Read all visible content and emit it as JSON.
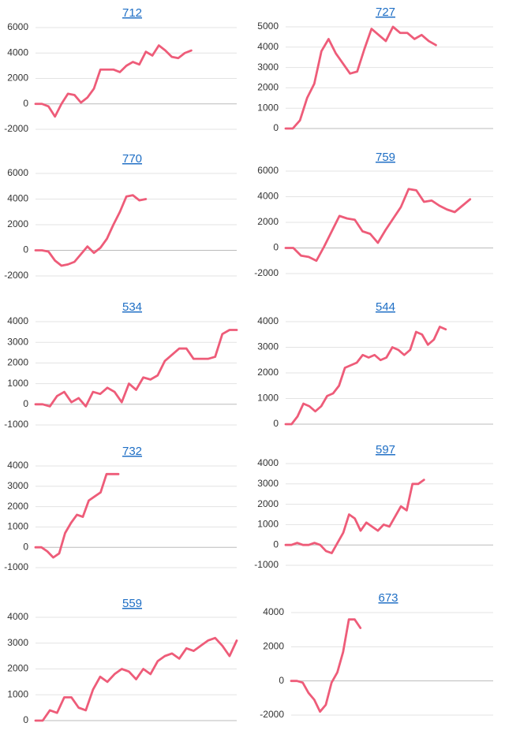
{
  "chart_data": [
    {
      "type": "line",
      "title": "712",
      "ylim": [
        -2000,
        6000
      ],
      "yticks": [
        -2000,
        0,
        2000,
        4000,
        6000
      ],
      "grid": true,
      "color": "#ee5c79",
      "values": [
        0,
        0,
        -200,
        -1000,
        0,
        800,
        700,
        100,
        500,
        1200,
        2700,
        2700,
        2700,
        2500,
        3000,
        3300,
        3100,
        4100,
        3800,
        4600,
        4200,
        3700,
        3600,
        4000,
        4200,
        null,
        null,
        null,
        null,
        null,
        null,
        null
      ]
    },
    {
      "type": "line",
      "title": "727",
      "ylim": [
        0,
        5000
      ],
      "yticks": [
        0,
        1000,
        2000,
        3000,
        4000,
        5000
      ],
      "grid": true,
      "color": "#ee5c79",
      "values": [
        0,
        0,
        400,
        1500,
        2200,
        3800,
        4400,
        3700,
        3200,
        2700,
        2800,
        3900,
        4900,
        4600,
        4300,
        5000,
        4700,
        4700,
        4400,
        4600,
        4300,
        4100,
        null,
        null,
        null,
        null,
        null,
        null,
        null,
        null
      ]
    },
    {
      "type": "line",
      "title": "770",
      "ylim": [
        -2000,
        6000
      ],
      "yticks": [
        -2000,
        0,
        2000,
        4000,
        6000
      ],
      "grid": true,
      "color": "#ee5c79",
      "values": [
        0,
        0,
        -100,
        -800,
        -1200,
        -1100,
        -900,
        -300,
        300,
        -200,
        200,
        900,
        2000,
        3000,
        4200,
        4300,
        3900,
        4000,
        null,
        null,
        null,
        null,
        null,
        null,
        null,
        null,
        null,
        null,
        null,
        null,
        null,
        null
      ]
    },
    {
      "type": "line",
      "title": "759",
      "ylim": [
        -2000,
        6000
      ],
      "yticks": [
        -2000,
        0,
        2000,
        4000,
        6000
      ],
      "grid": true,
      "color": "#ee5c79",
      "values": [
        0,
        0,
        -600,
        -700,
        -1000,
        100,
        1300,
        2500,
        2300,
        2200,
        1300,
        1100,
        400,
        1400,
        2300,
        3200,
        4600,
        4500,
        3600,
        3700,
        3300,
        3000,
        2800,
        3300,
        3800,
        null,
        null,
        null
      ]
    },
    {
      "type": "line",
      "title": "534",
      "ylim": [
        -1000,
        4000
      ],
      "yticks": [
        -1000,
        0,
        1000,
        2000,
        3000,
        4000
      ],
      "grid": true,
      "color": "#ee5c79",
      "values": [
        0,
        0,
        -100,
        400,
        600,
        100,
        300,
        -100,
        600,
        500,
        800,
        600,
        100,
        1000,
        700,
        1300,
        1200,
        1400,
        2100,
        2400,
        2700,
        2700,
        2200,
        2200,
        2200,
        2300,
        3400,
        3600,
        3600
      ]
    },
    {
      "type": "line",
      "title": "544",
      "ylim": [
        0,
        4000
      ],
      "yticks": [
        0,
        1000,
        2000,
        3000,
        4000
      ],
      "grid": true,
      "color": "#ee5c79",
      "values": [
        0,
        0,
        300,
        800,
        700,
        500,
        700,
        1100,
        1200,
        1500,
        2200,
        2300,
        2400,
        2700,
        2600,
        2700,
        2500,
        2600,
        3000,
        2900,
        2700,
        2900,
        3600,
        3500,
        3100,
        3300,
        3800,
        3700,
        null,
        null,
        null,
        null,
        null,
        null,
        null,
        null
      ]
    },
    {
      "type": "line",
      "title": "732",
      "ylim": [
        -1000,
        4000
      ],
      "yticks": [
        -1000,
        0,
        1000,
        2000,
        3000,
        4000
      ],
      "grid": true,
      "color": "#ee5c79",
      "values": [
        0,
        0,
        -200,
        -500,
        -300,
        700,
        1200,
        1600,
        1500,
        2300,
        2500,
        2700,
        3600,
        3600,
        3600,
        null,
        null,
        null,
        null,
        null,
        null,
        null,
        null,
        null,
        null,
        null,
        null,
        null,
        null,
        null,
        null,
        null,
        null,
        null,
        null
      ]
    },
    {
      "type": "line",
      "title": "597",
      "ylim": [
        -1000,
        4000
      ],
      "yticks": [
        -1000,
        0,
        1000,
        2000,
        3000,
        4000
      ],
      "grid": true,
      "color": "#ee5c79",
      "values": [
        0,
        0,
        100,
        0,
        0,
        100,
        0,
        -300,
        -400,
        100,
        600,
        1500,
        1300,
        700,
        1100,
        900,
        700,
        1000,
        900,
        1400,
        1900,
        1700,
        3000,
        3000,
        3200,
        null,
        null,
        null,
        null,
        null,
        null,
        null,
        null,
        null,
        null,
        null,
        null
      ]
    },
    {
      "type": "line",
      "title": "559",
      "ylim": [
        0,
        4000
      ],
      "yticks": [
        0,
        1000,
        2000,
        3000,
        4000
      ],
      "grid": true,
      "color": "#ee5c79",
      "values": [
        0,
        0,
        400,
        300,
        900,
        900,
        500,
        400,
        1200,
        1700,
        1500,
        1800,
        2000,
        1900,
        1600,
        2000,
        1800,
        2300,
        2500,
        2600,
        2400,
        2800,
        2700,
        2900,
        3100,
        3200,
        2900,
        2500,
        3100
      ]
    },
    {
      "type": "line",
      "title": "673",
      "ylim": [
        -2000,
        4000
      ],
      "yticks": [
        -2000,
        0,
        2000,
        4000
      ],
      "grid": true,
      "color": "#ee5c79",
      "values": [
        0,
        0,
        -100,
        -700,
        -1100,
        -1800,
        -1400,
        -100,
        500,
        1700,
        3600,
        3600,
        3100,
        null,
        null,
        null,
        null,
        null,
        null,
        null,
        null,
        null,
        null,
        null,
        null,
        null,
        null,
        null,
        null,
        null,
        null,
        null,
        null,
        null,
        null,
        null
      ]
    }
  ]
}
